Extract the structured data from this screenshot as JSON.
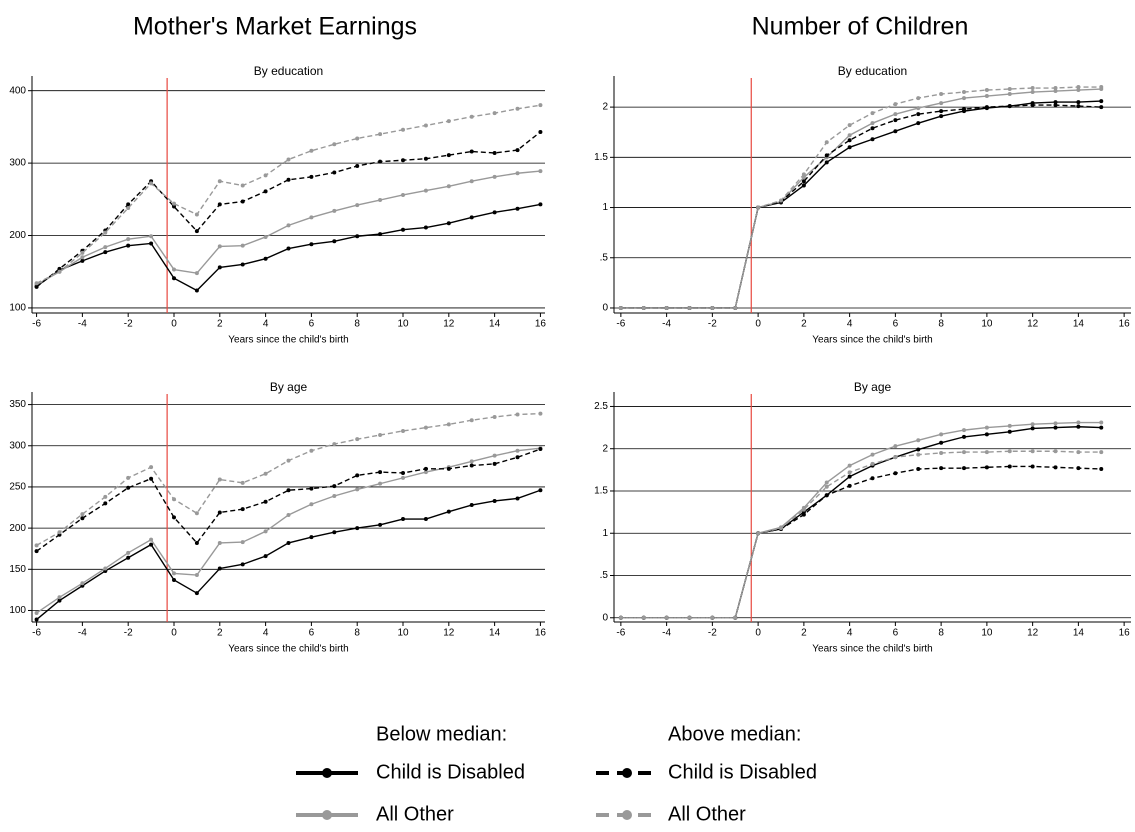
{
  "titles": [
    "Mother's Market Earnings",
    "Number of Children"
  ],
  "legend": {
    "groups": [
      {
        "title": "Below median:",
        "entries": [
          {
            "name": "Child is Disabled",
            "color": "#000000",
            "dashed": false
          },
          {
            "name": "All Other",
            "color": "#999999",
            "dashed": false
          }
        ]
      },
      {
        "title": "Above median:",
        "entries": [
          {
            "name": "Child is Disabled",
            "color": "#000000",
            "dashed": true
          },
          {
            "name": "All Other",
            "color": "#999999",
            "dashed": true
          }
        ]
      }
    ]
  },
  "chart_data": [
    {
      "type": "line",
      "subtitle": "By education",
      "xlabel": "Years since the child's birth",
      "x": [
        -6,
        -5,
        -4,
        -3,
        -2,
        -1,
        0,
        1,
        2,
        3,
        4,
        5,
        6,
        7,
        8,
        9,
        10,
        11,
        12,
        13,
        14,
        15,
        16
      ],
      "series": [
        {
          "color": "#000000",
          "dashed": false,
          "values": [
            130,
            152,
            165,
            177,
            186,
            189,
            141,
            124,
            156,
            160,
            168,
            182,
            188,
            192,
            199,
            202,
            208,
            211,
            217,
            225,
            232,
            237,
            243
          ]
        },
        {
          "color": "#999999",
          "dashed": false,
          "values": [
            132,
            150,
            170,
            184,
            195,
            199,
            153,
            148,
            185,
            186,
            198,
            214,
            225,
            234,
            242,
            249,
            256,
            262,
            268,
            275,
            281,
            286,
            289
          ]
        },
        {
          "color": "#000000",
          "dashed": true,
          "values": [
            129,
            154,
            179,
            207,
            243,
            275,
            240,
            206,
            243,
            247,
            261,
            277,
            281,
            287,
            296,
            302,
            304,
            306,
            311,
            316,
            314,
            318,
            343
          ]
        },
        {
          "color": "#999999",
          "dashed": true,
          "values": [
            134,
            150,
            176,
            204,
            238,
            272,
            244,
            229,
            275,
            269,
            283,
            305,
            317,
            326,
            334,
            340,
            346,
            352,
            358,
            364,
            369,
            375,
            380
          ]
        }
      ],
      "xlim": [
        -6.2,
        16.2
      ],
      "ylim": [
        93,
        412
      ],
      "xticks": [
        -6,
        -4,
        -2,
        0,
        2,
        4,
        6,
        8,
        10,
        12,
        14,
        16
      ],
      "yticks": [
        100,
        200,
        300,
        400
      ],
      "grid": true,
      "vline": -0.3,
      "vline_color": "#e8473f"
    },
    {
      "type": "line",
      "subtitle": "By education",
      "xlabel": "Years since the child's birth",
      "x": [
        -6,
        -5,
        -4,
        -3,
        -2,
        -1,
        0,
        1,
        2,
        3,
        4,
        5,
        6,
        7,
        8,
        9,
        10,
        11,
        12,
        13,
        14,
        15
      ],
      "series": [
        {
          "color": "#000000",
          "dashed": false,
          "values": [
            0,
            0,
            0,
            0,
            0,
            0,
            1,
            1.05,
            1.22,
            1.45,
            1.6,
            1.68,
            1.76,
            1.84,
            1.91,
            1.96,
            1.99,
            2.01,
            2.04,
            2.05,
            2.05,
            2.06
          ]
        },
        {
          "color": "#999999",
          "dashed": false,
          "values": [
            0,
            0,
            0,
            0,
            0,
            0,
            1,
            1.06,
            1.3,
            1.5,
            1.72,
            1.84,
            1.93,
            1.99,
            2.04,
            2.09,
            2.11,
            2.13,
            2.15,
            2.16,
            2.17,
            2.18
          ]
        },
        {
          "color": "#000000",
          "dashed": true,
          "values": [
            0,
            0,
            0,
            0,
            0,
            0,
            1,
            1.06,
            1.26,
            1.52,
            1.67,
            1.79,
            1.87,
            1.93,
            1.96,
            1.98,
            2.0,
            2.01,
            2.02,
            2.02,
            2.01,
            2.0
          ]
        },
        {
          "color": "#999999",
          "dashed": true,
          "values": [
            0,
            0,
            0,
            0,
            0,
            0,
            1,
            1.07,
            1.33,
            1.65,
            1.82,
            1.94,
            2.03,
            2.09,
            2.13,
            2.15,
            2.17,
            2.18,
            2.19,
            2.19,
            2.2,
            2.2
          ]
        }
      ],
      "xlim": [
        -6.3,
        16.3
      ],
      "ylim": [
        -0.05,
        2.25
      ],
      "xticks": [
        -6,
        -4,
        -2,
        0,
        2,
        4,
        6,
        8,
        10,
        12,
        14,
        16
      ],
      "yticks": [
        0,
        {
          "value": 0.5,
          "label": ".5"
        },
        1,
        1.5,
        2
      ],
      "grid": true,
      "vline": -0.3,
      "vline_color": "#e8473f"
    },
    {
      "type": "line",
      "subtitle": "By age",
      "xlabel": "Years since the child's birth",
      "x": [
        -6,
        -5,
        -4,
        -3,
        -2,
        -1,
        0,
        1,
        2,
        3,
        4,
        5,
        6,
        7,
        8,
        9,
        10,
        11,
        12,
        13,
        14,
        15,
        16
      ],
      "series": [
        {
          "color": "#000000",
          "dashed": false,
          "values": [
            89,
            112,
            130,
            148,
            164,
            180,
            137,
            121,
            151,
            156,
            166,
            182,
            189,
            195,
            200,
            204,
            211,
            211,
            220,
            228,
            233,
            236,
            246
          ]
        },
        {
          "color": "#999999",
          "dashed": false,
          "values": [
            97,
            116,
            133,
            151,
            170,
            186,
            145,
            143,
            182,
            183,
            196,
            216,
            229,
            239,
            247,
            254,
            261,
            268,
            274,
            281,
            288,
            294,
            297
          ]
        },
        {
          "color": "#000000",
          "dashed": true,
          "values": [
            172,
            192,
            212,
            230,
            249,
            260,
            213,
            182,
            219,
            223,
            232,
            246,
            248,
            251,
            264,
            268,
            267,
            272,
            272,
            276,
            278,
            286,
            296
          ]
        },
        {
          "color": "#999999",
          "dashed": true,
          "values": [
            179,
            195,
            217,
            238,
            261,
            274,
            235,
            218,
            259,
            255,
            266,
            282,
            294,
            302,
            308,
            313,
            318,
            322,
            326,
            331,
            335,
            338,
            339
          ]
        }
      ],
      "xlim": [
        -6.2,
        16.2
      ],
      "ylim": [
        86,
        358
      ],
      "xticks": [
        -6,
        -4,
        -2,
        0,
        2,
        4,
        6,
        8,
        10,
        12,
        14,
        16
      ],
      "yticks": [
        100,
        150,
        200,
        250,
        300,
        350
      ],
      "grid": true,
      "vline": -0.3,
      "vline_color": "#e8473f"
    },
    {
      "type": "line",
      "subtitle": "By age",
      "xlabel": "Years since the child's birth",
      "x": [
        -6,
        -5,
        -4,
        -3,
        -2,
        -1,
        0,
        1,
        2,
        3,
        4,
        5,
        6,
        7,
        8,
        9,
        10,
        11,
        12,
        13,
        14,
        15
      ],
      "series": [
        {
          "color": "#000000",
          "dashed": false,
          "values": [
            0,
            0,
            0,
            0,
            0,
            0,
            1,
            1.05,
            1.25,
            1.45,
            1.67,
            1.8,
            1.9,
            1.99,
            2.07,
            2.14,
            2.17,
            2.2,
            2.24,
            2.25,
            2.26,
            2.25
          ]
        },
        {
          "color": "#999999",
          "dashed": false,
          "values": [
            0,
            0,
            0,
            0,
            0,
            0,
            1,
            1.07,
            1.3,
            1.6,
            1.8,
            1.93,
            2.03,
            2.1,
            2.17,
            2.22,
            2.25,
            2.27,
            2.29,
            2.3,
            2.31,
            2.31
          ]
        },
        {
          "color": "#000000",
          "dashed": true,
          "values": [
            0,
            0,
            0,
            0,
            0,
            0,
            1,
            1.05,
            1.22,
            1.45,
            1.56,
            1.65,
            1.71,
            1.76,
            1.77,
            1.77,
            1.78,
            1.79,
            1.79,
            1.78,
            1.77,
            1.76
          ]
        },
        {
          "color": "#999999",
          "dashed": true,
          "values": [
            0,
            0,
            0,
            0,
            0,
            0,
            1,
            1.06,
            1.28,
            1.55,
            1.72,
            1.82,
            1.9,
            1.93,
            1.95,
            1.96,
            1.96,
            1.97,
            1.97,
            1.97,
            1.96,
            1.96
          ]
        }
      ],
      "xlim": [
        -6.3,
        16.3
      ],
      "ylim": [
        -0.05,
        2.6
      ],
      "xticks": [
        -6,
        -4,
        -2,
        0,
        2,
        4,
        6,
        8,
        10,
        12,
        14,
        16
      ],
      "yticks": [
        0,
        {
          "value": 0.5,
          "label": ".5"
        },
        1,
        1.5,
        2,
        2.5
      ],
      "grid": true,
      "vline": -0.3,
      "vline_color": "#e8473f"
    }
  ]
}
